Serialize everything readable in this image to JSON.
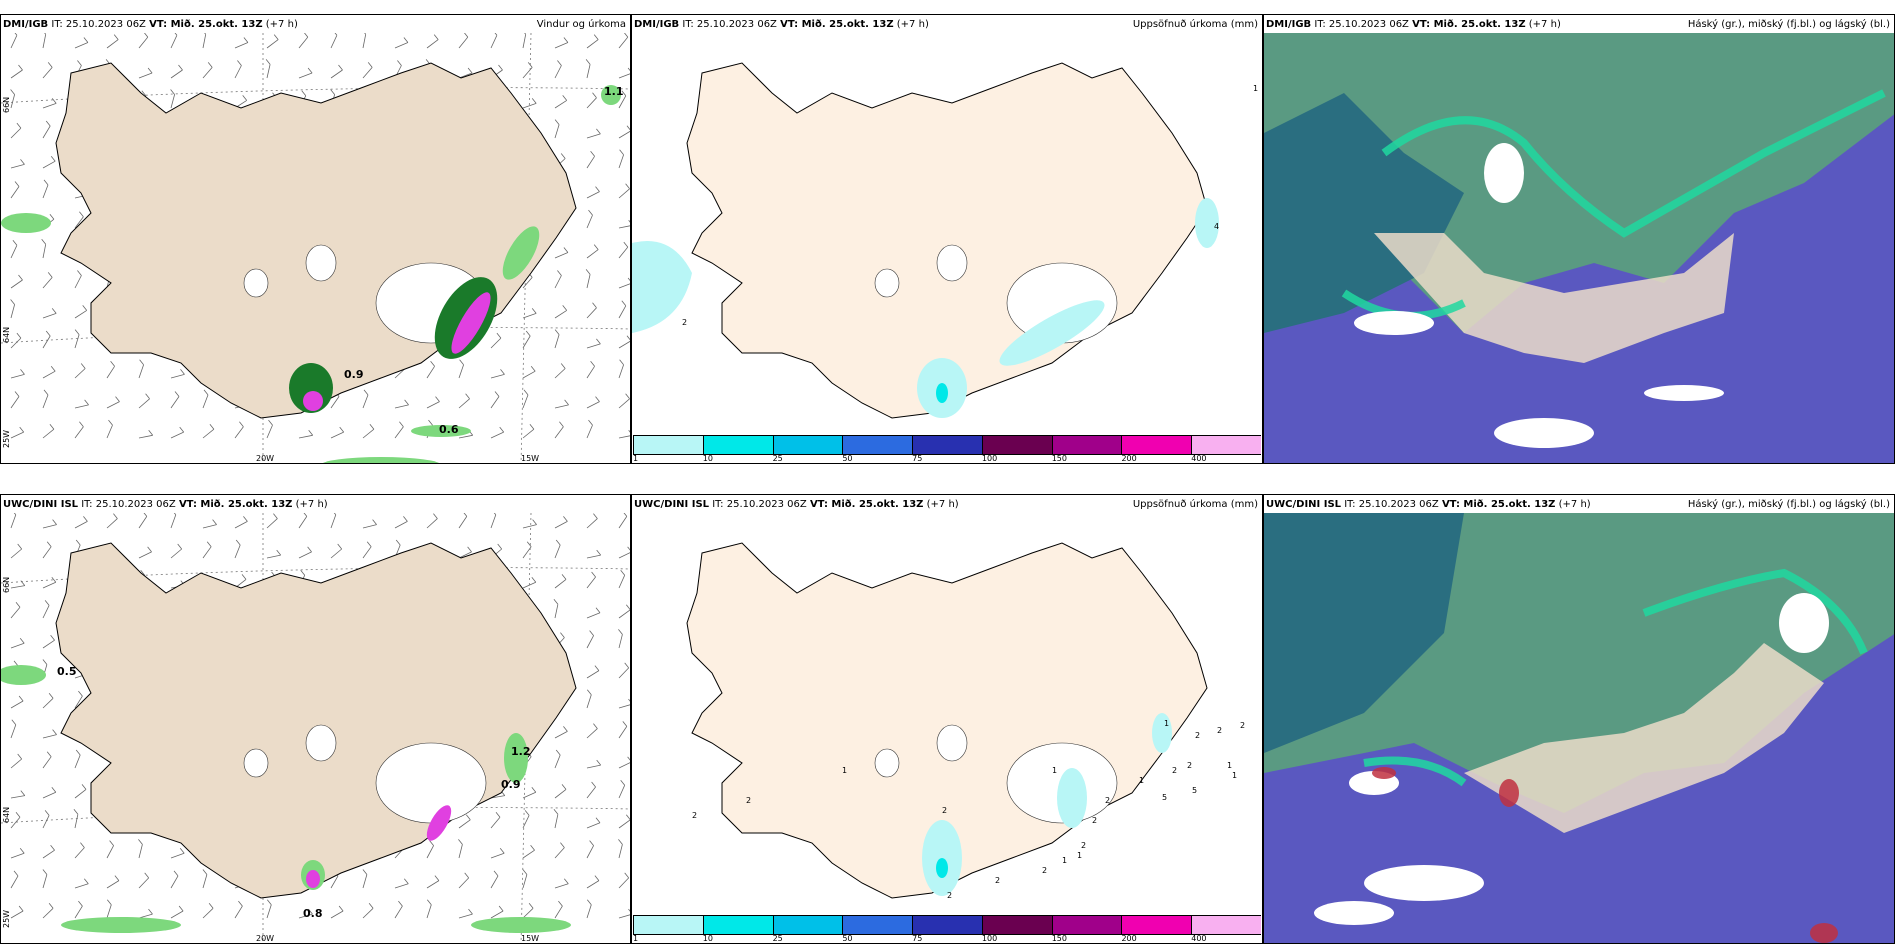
{
  "common": {
    "issue_prefix": "IT:",
    "issue_time": "25.10.2023 06Z",
    "valid_prefix": "VT: Mið. 25.okt. 13Z",
    "lead": "(+7 h)"
  },
  "panels": [
    {
      "id": "top-left",
      "model": "DMI/IGB",
      "right_title": "Vindur og úrkoma",
      "kind": "wind",
      "values": [
        "1.1",
        "0.9",
        "0.6"
      ],
      "lon_labels": [
        "20W",
        "15W"
      ],
      "lat_labels": [
        "66N",
        "64N",
        "25W"
      ]
    },
    {
      "id": "top-middle",
      "model": "DMI/IGB",
      "right_title": "Uppsöfnuð úrkoma (mm)",
      "kind": "accum",
      "values": [
        "1",
        "4",
        "2"
      ]
    },
    {
      "id": "top-right",
      "model": "DMI/IGB",
      "right_title": "Háský (gr.), miðský (fj.bl.) og lágský (bl.)",
      "kind": "cloud"
    },
    {
      "id": "bottom-left",
      "model": "UWC/DINI ISL",
      "right_title": "",
      "kind": "wind",
      "values": [
        "0.5",
        "1.2",
        "0.9",
        "0.8"
      ],
      "lon_labels": [
        "20W",
        "15W"
      ],
      "lat_labels": [
        "66N",
        "64N",
        "25W"
      ]
    },
    {
      "id": "bottom-middle",
      "model": "UWC/DINI ISL",
      "right_title": "Uppsöfnuð úrkoma (mm)",
      "kind": "accum",
      "values": [
        "2",
        "2",
        "2",
        "1",
        "2",
        "1",
        "2",
        "1",
        "1",
        "1",
        "5",
        "5",
        "2",
        "2",
        "2",
        "1",
        "1",
        "2",
        "2",
        "2",
        "2",
        "2",
        "1",
        "2",
        "2"
      ]
    },
    {
      "id": "bottom-right",
      "model": "UWC/DINI ISL",
      "right_title": "Háský (gr.), miðský (fj.bl.) og lágský (bl.)",
      "kind": "cloud"
    }
  ],
  "scale": {
    "colors": [
      "#b8f6f6",
      "#00e8e8",
      "#00c0e8",
      "#2c6be0",
      "#2830b0",
      "#6a0050",
      "#a0008a",
      "#f000b0",
      "#f8b0f0"
    ],
    "ticks": [
      "1",
      "10",
      "25",
      "50",
      "75",
      "100",
      "150",
      "200",
      "400"
    ]
  },
  "colors": {
    "land": "#ebdcc9",
    "land_accum": "#fdf0e2",
    "rain_green": "#7dd87d",
    "rain_dark": "#1a7a2a",
    "rain_pink": "#e040e0",
    "high_cloud": "#5a9a82",
    "mid_cloud": "#2a6e80",
    "low_cloud": "#5a58c0",
    "cloud_cyan": "#20d8a0"
  }
}
